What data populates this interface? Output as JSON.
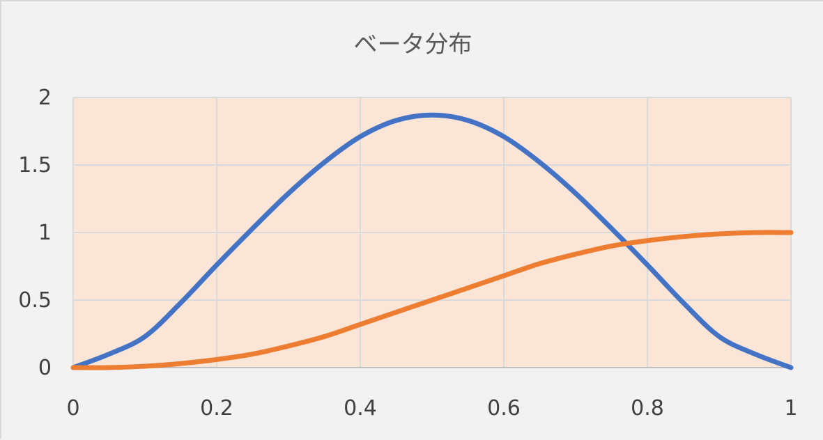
{
  "chart_data": {
    "type": "line",
    "title": "ベータ分布",
    "xlabel": "",
    "ylabel": "",
    "xlim": [
      0,
      1
    ],
    "ylim": [
      0,
      2
    ],
    "x_ticks": [
      "0",
      "0.2",
      "0.4",
      "0.6",
      "0.8",
      "1"
    ],
    "y_ticks": [
      "0",
      "0.5",
      "1",
      "1.5",
      "2"
    ],
    "grid": true,
    "legend": "none",
    "plot_background": "#fbe5d6",
    "x": [
      0,
      0.05,
      0.1,
      0.15,
      0.2,
      0.25,
      0.3,
      0.35,
      0.4,
      0.45,
      0.5,
      0.55,
      0.6,
      0.65,
      0.7,
      0.75,
      0.8,
      0.85,
      0.9,
      0.95,
      1
    ],
    "series": [
      {
        "color": "#4472c4",
        "values": [
          0,
          0.1,
          0.23,
          0.48,
          0.76,
          1.03,
          1.29,
          1.52,
          1.71,
          1.83,
          1.87,
          1.83,
          1.71,
          1.52,
          1.29,
          1.03,
          0.76,
          0.48,
          0.23,
          0.1,
          0
        ]
      },
      {
        "color": "#ed7d31",
        "values": [
          0,
          0,
          0.01,
          0.03,
          0.06,
          0.1,
          0.16,
          0.23,
          0.32,
          0.41,
          0.5,
          0.59,
          0.68,
          0.77,
          0.84,
          0.9,
          0.94,
          0.97,
          0.99,
          1.0,
          1.0
        ]
      }
    ]
  }
}
